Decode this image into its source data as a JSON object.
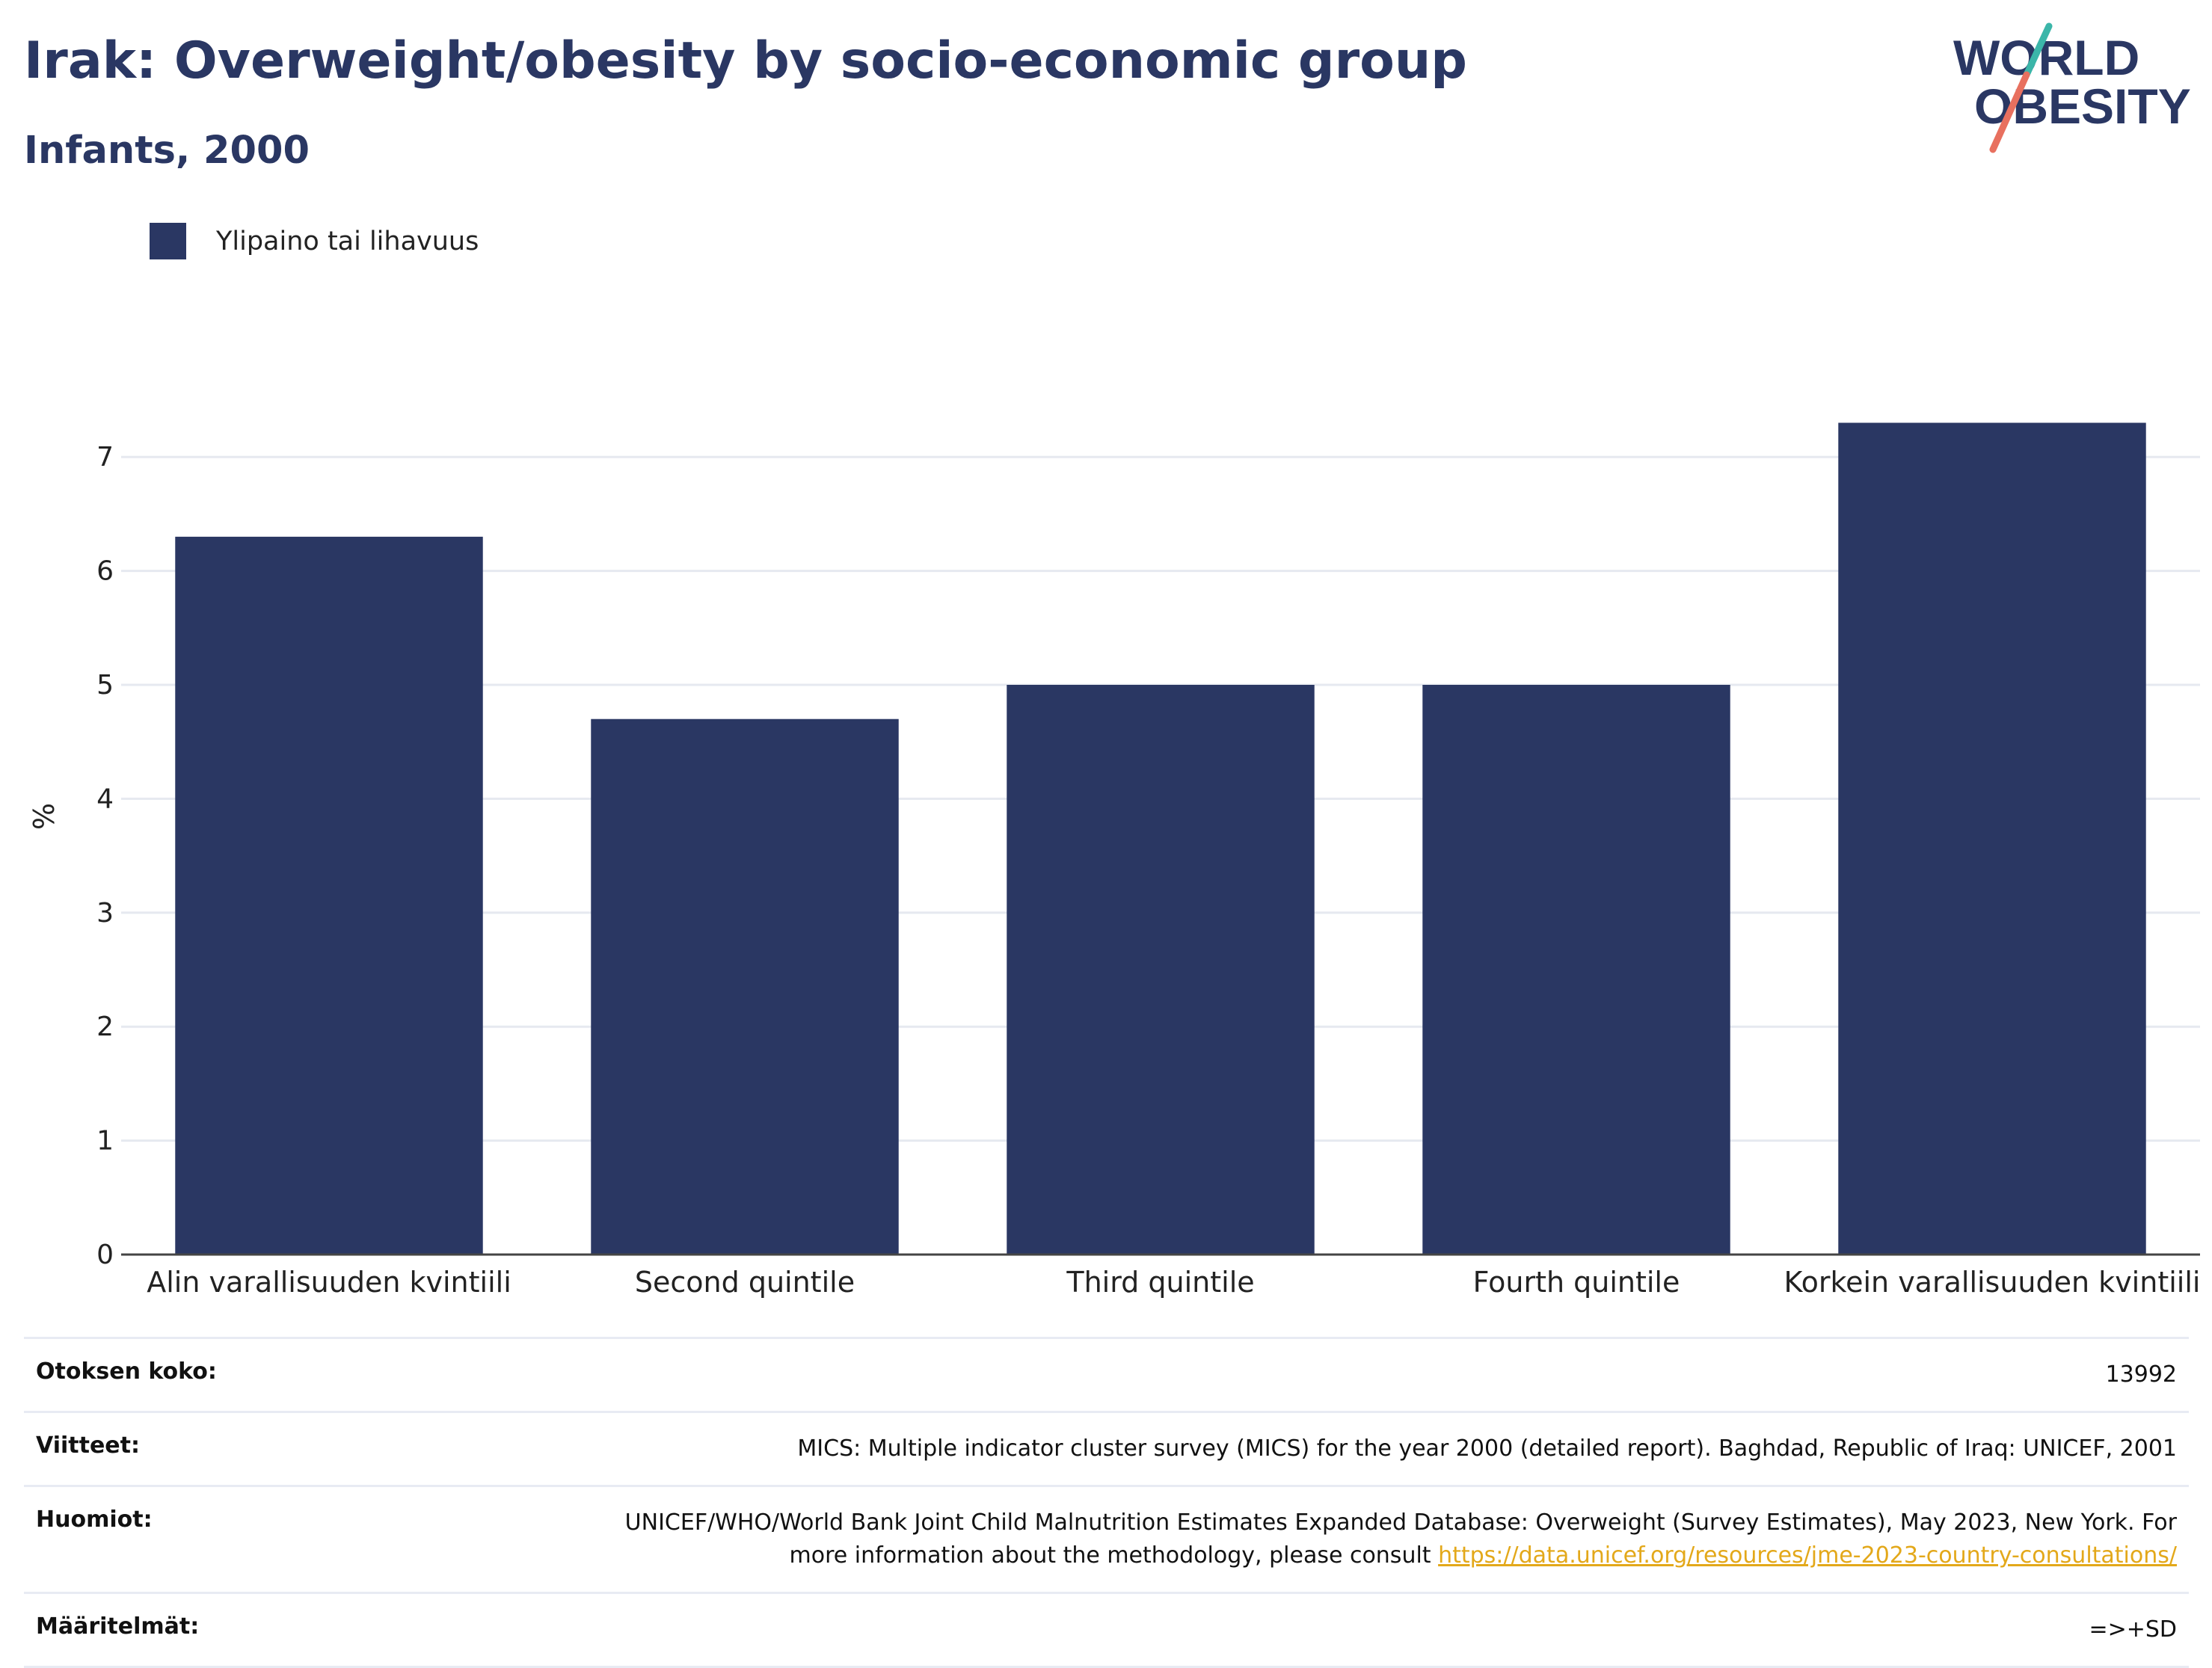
{
  "header": {
    "title": "Irak: Overweight/obesity by socio-economic group",
    "subtitle": "Infants, 2000"
  },
  "logo": {
    "line1": "WORLD",
    "line2": "OBESITY"
  },
  "colors": {
    "bar": "#2a3763",
    "title": "#2a3763",
    "link": "#e3a81a",
    "grid": "#e8ebf3",
    "logo_teal": "#3bb6a9",
    "logo_coral": "#e8705f"
  },
  "chart_data": {
    "type": "bar",
    "categories": [
      "Alin varallisuuden kvintiili",
      "Second quintile",
      "Third quintile",
      "Fourth quintile",
      "Korkein varallisuuden kvintiili"
    ],
    "series": [
      {
        "name": "Ylipaino tai lihavuus",
        "values": [
          6.3,
          4.7,
          5.0,
          5.0,
          7.3
        ]
      }
    ],
    "ylabel": "%",
    "ylim": [
      0,
      7.5
    ],
    "yticks": [
      0,
      1,
      2,
      3,
      4,
      5,
      6,
      7
    ],
    "grid": true,
    "legend": "top-left"
  },
  "info": {
    "sample_label": "Otoksen koko:",
    "sample_value": "13992",
    "refs_label": "Viitteet:",
    "refs_value": "MICS: Multiple indicator cluster survey (MICS) for the year 2000 (detailed report). Baghdad, Republic of Iraq: UNICEF, 2001",
    "notes_label": "Huomiot:",
    "notes_value": "UNICEF/WHO/World Bank Joint Child Malnutrition Estimates Expanded Database: Overweight (Survey Estimates), May 2023, New York. For more information about the methodology, please consult ",
    "notes_link": "https://data.unicef.org/resources/jme-2023-country-consultations/",
    "defs_label": "Määritelmät:",
    "defs_value": "=>+SD"
  }
}
